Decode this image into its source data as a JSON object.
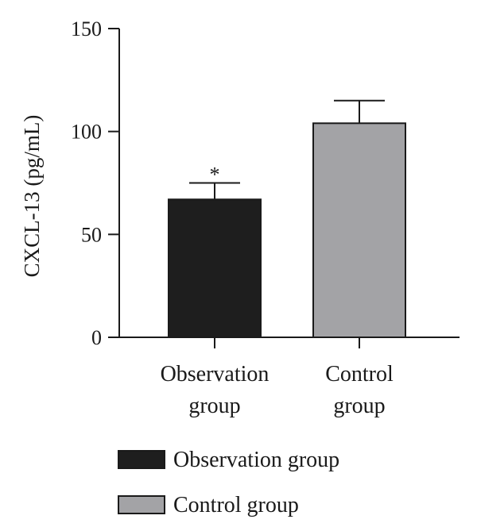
{
  "chart_data": {
    "type": "bar",
    "title": "",
    "ylabel": "CXCL-13 (pg/mL)",
    "xlabel": "",
    "ylim": [
      0,
      150
    ],
    "yticks": [
      0,
      50,
      100,
      150
    ],
    "categories": [
      [
        "Observation",
        "group"
      ],
      [
        "Control",
        "group"
      ]
    ],
    "values": [
      67,
      104
    ],
    "errors": [
      8,
      11
    ],
    "annotations": [
      "*",
      ""
    ],
    "colors": [
      "#1e1e1e",
      "#a3a3a6"
    ],
    "legend": {
      "position": "bottom-left",
      "entries": [
        {
          "label": "Observation group",
          "color": "#1e1e1e"
        },
        {
          "label": "Control group",
          "color": "#a3a3a6"
        }
      ]
    },
    "grid": false
  }
}
